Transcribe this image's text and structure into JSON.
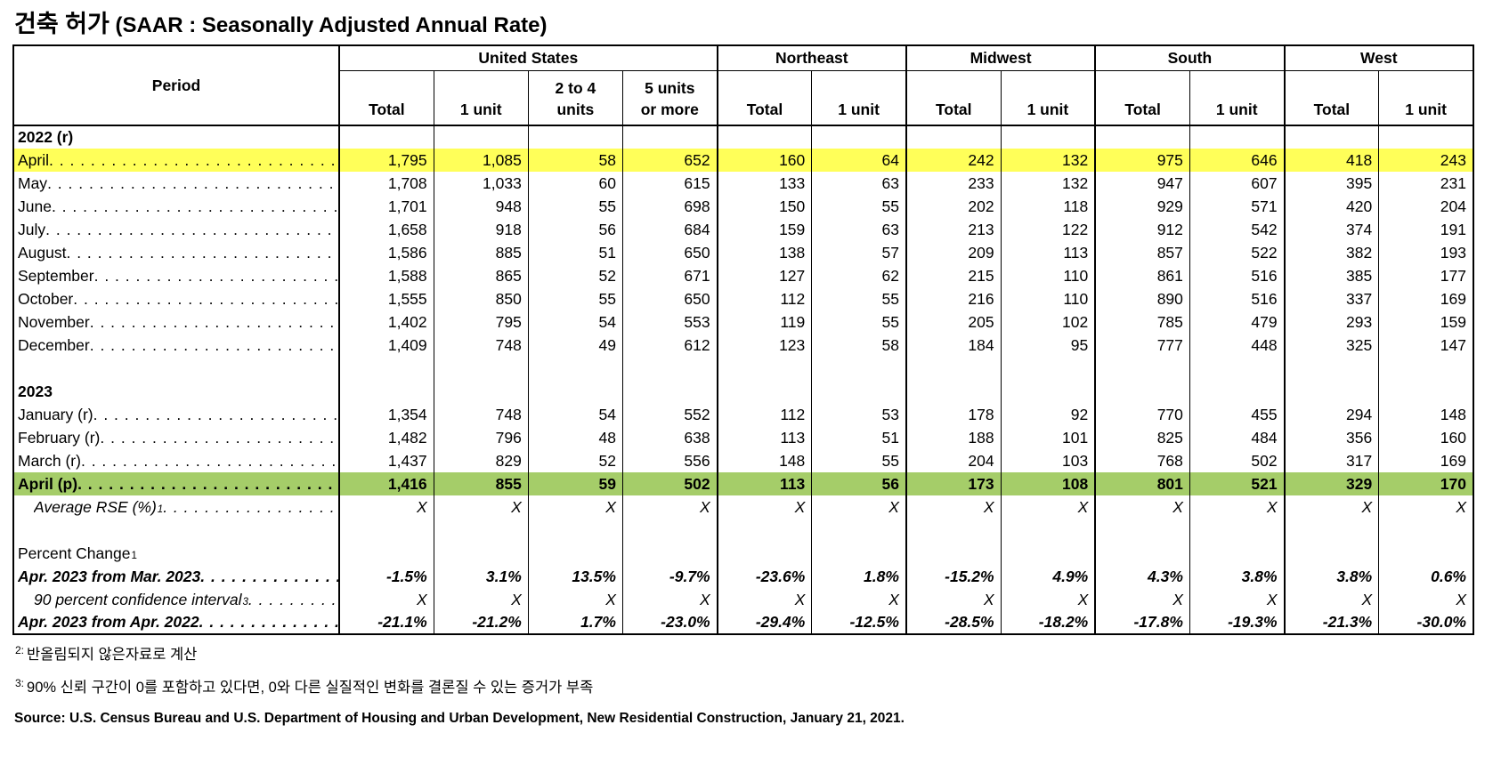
{
  "title": {
    "korean": "건축 허가",
    "latin": " (SAAR : Seasonally Adjusted Annual Rate)"
  },
  "colors": {
    "highlight_yellow": "#FFFF59",
    "highlight_green": "#A5CD69"
  },
  "table": {
    "period_header": "Period",
    "groups": [
      {
        "label": "United States"
      },
      {
        "label": "Northeast"
      },
      {
        "label": "Midwest"
      },
      {
        "label": "South"
      },
      {
        "label": "West"
      }
    ],
    "sub_headers": [
      "Total",
      "1 unit",
      "2 to 4\nunits",
      "5 units\nor more",
      "Total",
      "1 unit",
      "Total",
      "1 unit",
      "Total",
      "1 unit",
      "Total",
      "1 unit"
    ],
    "rows": [
      {
        "type": "section",
        "label": "2022 (r)",
        "emphasis": "bold"
      },
      {
        "type": "data",
        "label": "April",
        "leader": true,
        "highlight": "yellow",
        "values": [
          "1,795",
          "1,085",
          "58",
          "652",
          "160",
          "64",
          "242",
          "132",
          "975",
          "646",
          "418",
          "243"
        ]
      },
      {
        "type": "data",
        "label": "May",
        "leader": true,
        "values": [
          "1,708",
          "1,033",
          "60",
          "615",
          "133",
          "63",
          "233",
          "132",
          "947",
          "607",
          "395",
          "231"
        ]
      },
      {
        "type": "data",
        "label": "June",
        "leader": true,
        "values": [
          "1,701",
          "948",
          "55",
          "698",
          "150",
          "55",
          "202",
          "118",
          "929",
          "571",
          "420",
          "204"
        ]
      },
      {
        "type": "data",
        "label": "July",
        "leader": true,
        "values": [
          "1,658",
          "918",
          "56",
          "684",
          "159",
          "63",
          "213",
          "122",
          "912",
          "542",
          "374",
          "191"
        ]
      },
      {
        "type": "data",
        "label": "August",
        "leader": true,
        "values": [
          "1,586",
          "885",
          "51",
          "650",
          "138",
          "57",
          "209",
          "113",
          "857",
          "522",
          "382",
          "193"
        ]
      },
      {
        "type": "data",
        "label": "September",
        "leader": true,
        "values": [
          "1,588",
          "865",
          "52",
          "671",
          "127",
          "62",
          "215",
          "110",
          "861",
          "516",
          "385",
          "177"
        ]
      },
      {
        "type": "data",
        "label": "October",
        "leader": true,
        "values": [
          "1,555",
          "850",
          "55",
          "650",
          "112",
          "55",
          "216",
          "110",
          "890",
          "516",
          "337",
          "169"
        ]
      },
      {
        "type": "data",
        "label": "November",
        "leader": true,
        "values": [
          "1,402",
          "795",
          "54",
          "553",
          "119",
          "55",
          "205",
          "102",
          "785",
          "479",
          "293",
          "159"
        ]
      },
      {
        "type": "data",
        "label": "December",
        "leader": true,
        "values": [
          "1,409",
          "748",
          "49",
          "612",
          "123",
          "58",
          "184",
          "95",
          "777",
          "448",
          "325",
          "147"
        ]
      },
      {
        "type": "spacer"
      },
      {
        "type": "section",
        "label": "2023",
        "emphasis": "bold"
      },
      {
        "type": "data",
        "label": "January (r)",
        "leader": true,
        "values": [
          "1,354",
          "748",
          "54",
          "552",
          "112",
          "53",
          "178",
          "92",
          "770",
          "455",
          "294",
          "148"
        ]
      },
      {
        "type": "data",
        "label": "February (r)",
        "leader": true,
        "values": [
          "1,482",
          "796",
          "48",
          "638",
          "113",
          "51",
          "188",
          "101",
          "825",
          "484",
          "356",
          "160"
        ]
      },
      {
        "type": "data",
        "label": "March (r)",
        "leader": true,
        "values": [
          "1,437",
          "829",
          "52",
          "556",
          "148",
          "55",
          "204",
          "103",
          "768",
          "502",
          "317",
          "169"
        ]
      },
      {
        "type": "data",
        "label": "April (p)",
        "leader": true,
        "highlight": "green",
        "emphasis": "bold",
        "values": [
          "1,416",
          "855",
          "59",
          "502",
          "113",
          "56",
          "173",
          "108",
          "801",
          "521",
          "329",
          "170"
        ]
      },
      {
        "type": "data",
        "label": "Average RSE (%)",
        "sup": "1",
        "leader": true,
        "indent": true,
        "emphasis": "italic",
        "values": [
          "X",
          "X",
          "X",
          "X",
          "X",
          "X",
          "X",
          "X",
          "X",
          "X",
          "X",
          "X"
        ]
      },
      {
        "type": "spacer"
      },
      {
        "type": "section",
        "label": "Percent Change",
        "sup": "1",
        "plain": true
      },
      {
        "type": "data",
        "label": "Apr. 2023 from Mar. 2023",
        "leader": true,
        "emphasis": "bold-italic",
        "values": [
          "-1.5%",
          "3.1%",
          "13.5%",
          "-9.7%",
          "-23.6%",
          "1.8%",
          "-15.2%",
          "4.9%",
          "4.3%",
          "3.8%",
          "3.8%",
          "0.6%"
        ]
      },
      {
        "type": "data",
        "label": "90 percent confidence interval",
        "sup": "3",
        "leader": true,
        "indent": true,
        "emphasis": "italic",
        "values": [
          "X",
          "X",
          "X",
          "X",
          "X",
          "X",
          "X",
          "X",
          "X",
          "X",
          "X",
          "X"
        ]
      },
      {
        "type": "data",
        "label": "Apr. 2023 from Apr. 2022",
        "leader": true,
        "emphasis": "bold-italic",
        "values": [
          "-21.1%",
          "-21.2%",
          "1.7%",
          "-23.0%",
          "-29.4%",
          "-12.5%",
          "-28.5%",
          "-18.2%",
          "-17.8%",
          "-19.3%",
          "-21.3%",
          "-30.0%"
        ]
      }
    ]
  },
  "footnotes": [
    {
      "sup": "2:",
      "text": "반올림되지 않은자료로 계산"
    },
    {
      "sup": "3:",
      "text": "90% 신뢰 구간이 0를 포함하고 있다면, 0와 다른 실질적인 변화를 결론질 수 있는 증거가 부족"
    }
  ],
  "source": "Source: U.S. Census Bureau and U.S. Department of Housing and Urban Development, New Residential Construction, January 21, 2021."
}
